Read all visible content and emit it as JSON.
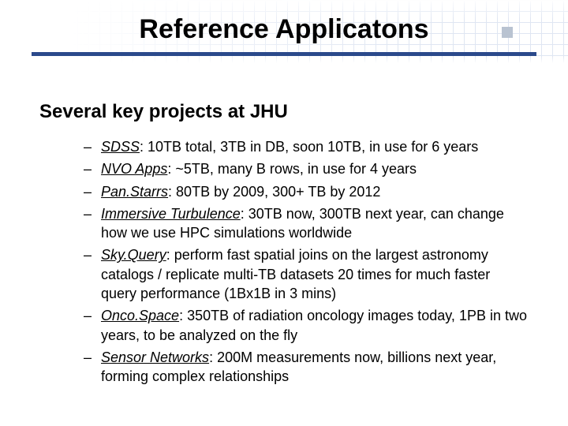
{
  "title": "Reference Applicatons",
  "subtitle": "Several key projects at JHU",
  "colors": {
    "underline": "#2b4a8b",
    "grid": "#d8e0ef",
    "text": "#000000",
    "background": "#ffffff",
    "corner_square": "#b9c3d1"
  },
  "fonts": {
    "title_size": 34,
    "subtitle_size": 24,
    "item_size": 18,
    "family": "Arial"
  },
  "bullets": [
    {
      "label": "SDSS",
      "rest": ": 10TB total, 3TB in DB, soon 10TB, in use for 6 years"
    },
    {
      "label": "NVO Apps",
      "rest": ": ~5TB, many B rows, in use for 4 years"
    },
    {
      "label": "Pan.Starrs",
      "rest": ": 80TB by 2009, 300+ TB by 2012"
    },
    {
      "label": "Immersive Turbulence",
      "rest": ": 30TB now, 300TB next year, can change how we use HPC simulations worldwide"
    },
    {
      "label": "Sky.Query",
      "rest": ": perform fast spatial joins on the largest astronomy catalogs / replicate multi-TB datasets 20 times for much faster query performance (1Bx1B in 3 mins)"
    },
    {
      "label": "Onco.Space",
      "rest": ": 350TB of radiation oncology images today, 1PB in two years, to be analyzed on the fly"
    },
    {
      "label": "Sensor Networks",
      "rest": ": 200M measurements now, billions next year, forming complex relationships"
    }
  ]
}
